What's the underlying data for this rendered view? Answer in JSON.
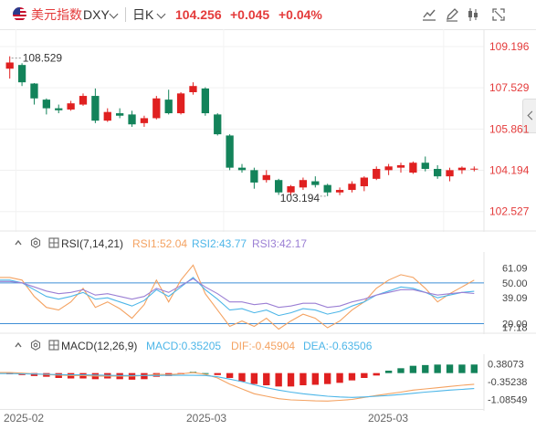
{
  "header": {
    "name": "美元指数",
    "code": "DXY",
    "period": "日K",
    "price": "104.256",
    "change": "+0.045",
    "change_pct": "+0.04%",
    "toolbar": [
      "chart-style-icon",
      "draw-pen-icon",
      "candlestick-toggle-icon",
      "fullscreen-icon"
    ]
  },
  "colors": {
    "up": "#e02020",
    "down": "#13835a",
    "rsi1": "#f4a261",
    "rsi2": "#4db6e8",
    "rsi3": "#9b7fd4",
    "dif": "#f4a261",
    "dea": "#4db6e8",
    "refline": "#3f8fd6",
    "price_axis": "#e43b3b"
  },
  "main_chart": {
    "price_ticks": [
      "109.196",
      "107.529",
      "105.861",
      "104.194",
      "102.527"
    ],
    "high_label": "108.529",
    "low_label": "103.194",
    "date_labels": [
      "2025-02",
      "2025-03",
      "2025-03"
    ]
  },
  "chart_data": {
    "type": "candlestick",
    "period": "daily",
    "ylim": [
      102.0,
      109.6
    ],
    "candles": [
      {
        "o": 108.3,
        "h": 108.8,
        "l": 107.9,
        "c": 108.55
      },
      {
        "o": 108.45,
        "h": 108.52,
        "l": 107.6,
        "c": 107.75
      },
      {
        "o": 107.7,
        "h": 107.72,
        "l": 106.85,
        "c": 107.1
      },
      {
        "o": 107.05,
        "h": 107.1,
        "l": 106.45,
        "c": 106.7
      },
      {
        "o": 106.7,
        "h": 106.85,
        "l": 106.5,
        "c": 106.62
      },
      {
        "o": 106.65,
        "h": 107.0,
        "l": 106.6,
        "c": 106.9
      },
      {
        "o": 106.85,
        "h": 107.3,
        "l": 106.8,
        "c": 107.2
      },
      {
        "o": 107.2,
        "h": 107.5,
        "l": 106.1,
        "c": 106.2
      },
      {
        "o": 106.2,
        "h": 106.7,
        "l": 106.15,
        "c": 106.55
      },
      {
        "o": 106.5,
        "h": 106.7,
        "l": 106.3,
        "c": 106.4
      },
      {
        "o": 106.45,
        "h": 106.6,
        "l": 105.95,
        "c": 106.05
      },
      {
        "o": 106.1,
        "h": 106.4,
        "l": 105.95,
        "c": 106.3
      },
      {
        "o": 106.3,
        "h": 107.2,
        "l": 106.25,
        "c": 107.1
      },
      {
        "o": 107.05,
        "h": 107.45,
        "l": 106.45,
        "c": 106.5
      },
      {
        "o": 106.5,
        "h": 107.35,
        "l": 106.45,
        "c": 107.3
      },
      {
        "o": 107.35,
        "h": 107.75,
        "l": 107.25,
        "c": 107.6
      },
      {
        "o": 107.5,
        "h": 107.55,
        "l": 106.4,
        "c": 106.5
      },
      {
        "o": 106.45,
        "h": 106.5,
        "l": 105.6,
        "c": 105.65
      },
      {
        "o": 105.6,
        "h": 105.65,
        "l": 104.2,
        "c": 104.3
      },
      {
        "o": 104.3,
        "h": 104.45,
        "l": 104.1,
        "c": 104.2
      },
      {
        "o": 104.2,
        "h": 104.3,
        "l": 103.45,
        "c": 103.7
      },
      {
        "o": 103.8,
        "h": 104.2,
        "l": 103.7,
        "c": 104.0
      },
      {
        "o": 103.8,
        "h": 103.85,
        "l": 103.2,
        "c": 103.3
      },
      {
        "o": 103.3,
        "h": 103.6,
        "l": 103.2,
        "c": 103.55
      },
      {
        "o": 103.5,
        "h": 103.9,
        "l": 103.4,
        "c": 103.8
      },
      {
        "o": 103.75,
        "h": 103.95,
        "l": 103.5,
        "c": 103.6
      },
      {
        "o": 103.6,
        "h": 103.65,
        "l": 103.15,
        "c": 103.3
      },
      {
        "o": 103.3,
        "h": 103.5,
        "l": 103.19,
        "c": 103.4
      },
      {
        "o": 103.4,
        "h": 103.75,
        "l": 103.3,
        "c": 103.65
      },
      {
        "o": 103.55,
        "h": 103.95,
        "l": 103.35,
        "c": 103.9
      },
      {
        "o": 103.85,
        "h": 104.35,
        "l": 103.8,
        "c": 104.25
      },
      {
        "o": 104.2,
        "h": 104.45,
        "l": 104.0,
        "c": 104.35
      },
      {
        "o": 104.3,
        "h": 104.5,
        "l": 104.1,
        "c": 104.4
      },
      {
        "o": 104.1,
        "h": 104.55,
        "l": 104.05,
        "c": 104.5
      },
      {
        "o": 104.5,
        "h": 104.75,
        "l": 104.15,
        "c": 104.25
      },
      {
        "o": 104.25,
        "h": 104.4,
        "l": 103.85,
        "c": 103.95
      },
      {
        "o": 103.95,
        "h": 104.3,
        "l": 103.75,
        "c": 104.2
      },
      {
        "o": 104.2,
        "h": 104.35,
        "l": 104.05,
        "c": 104.3
      },
      {
        "o": 104.25,
        "h": 104.35,
        "l": 104.15,
        "c": 104.26
      }
    ],
    "rsi": {
      "label": "RSI(7,14,21)",
      "rsi1_label": "RSI1:52.04",
      "rsi2_label": "RSI2:43.77",
      "rsi3_label": "RSI3:42.17",
      "ylim": [
        15,
        70
      ],
      "ticks": [
        "61.09",
        "50.00",
        "39.09",
        "20.00",
        "17.18"
      ],
      "ref_levels": [
        50,
        20
      ],
      "rsi1": [
        54,
        52,
        40,
        32,
        30,
        36,
        46,
        32,
        36,
        31,
        24,
        34,
        52,
        36,
        52,
        63,
        42,
        30,
        18,
        22,
        18,
        24,
        16,
        22,
        27,
        24,
        17,
        22,
        30,
        36,
        46,
        52,
        56,
        54,
        46,
        36,
        42,
        47,
        52.04
      ],
      "rsi2": [
        52,
        50,
        45,
        40,
        38,
        40,
        43,
        38,
        39,
        36,
        33,
        37,
        45,
        40,
        47,
        54,
        45,
        38,
        30,
        31,
        28,
        30,
        26,
        28,
        31,
        30,
        27,
        29,
        33,
        36,
        41,
        44,
        47,
        46,
        43,
        39,
        41,
        43,
        43.77
      ],
      "rsi3": [
        51,
        50,
        47,
        44,
        42,
        43,
        45,
        41,
        42,
        40,
        38,
        40,
        46,
        43,
        48,
        53,
        47,
        42,
        36,
        36,
        34,
        35,
        32,
        33,
        35,
        35,
        32,
        33,
        36,
        38,
        41,
        43,
        45,
        45,
        43,
        41,
        42,
        43,
        42.17
      ]
    },
    "macd": {
      "label": "MACD(12,26,9)",
      "macd_label": "MACD:0.35205",
      "dif_label": "DIF:-0.45904",
      "dea_label": "DEA:-0.63506",
      "ylim": [
        -1.4,
        0.7
      ],
      "ticks": [
        "0.38073",
        "-0.35238",
        "-1.08549"
      ],
      "hist": [
        -0.05,
        -0.08,
        -0.12,
        -0.15,
        -0.2,
        -0.22,
        -0.22,
        -0.25,
        -0.22,
        -0.25,
        -0.27,
        -0.25,
        -0.15,
        -0.12,
        -0.05,
        0.05,
        0,
        -0.08,
        -0.2,
        -0.35,
        -0.45,
        -0.5,
        -0.55,
        -0.55,
        -0.5,
        -0.48,
        -0.45,
        -0.4,
        -0.3,
        -0.2,
        -0.1,
        0.1,
        0.2,
        0.3,
        0.33,
        0.35,
        0.35,
        0.35,
        0.35205
      ],
      "dif": [
        0.02,
        0.0,
        -0.03,
        -0.06,
        -0.08,
        -0.1,
        -0.1,
        -0.12,
        -0.12,
        -0.12,
        -0.12,
        -0.1,
        -0.05,
        -0.06,
        -0.03,
        0.02,
        -0.05,
        -0.2,
        -0.45,
        -0.65,
        -0.85,
        -0.95,
        -1.05,
        -1.1,
        -1.12,
        -1.14,
        -1.15,
        -1.12,
        -1.08,
        -1.0,
        -0.92,
        -0.85,
        -0.78,
        -0.7,
        -0.65,
        -0.6,
        -0.55,
        -0.5,
        -0.45904
      ],
      "dea": [
        -0.02,
        -0.03,
        -0.04,
        -0.05,
        -0.06,
        -0.07,
        -0.07,
        -0.08,
        -0.09,
        -0.1,
        -0.1,
        -0.1,
        -0.1,
        -0.09,
        -0.09,
        -0.09,
        -0.1,
        -0.15,
        -0.25,
        -0.35,
        -0.48,
        -0.6,
        -0.7,
        -0.78,
        -0.85,
        -0.9,
        -0.95,
        -0.98,
        -1.0,
        -0.98,
        -0.95,
        -0.92,
        -0.88,
        -0.83,
        -0.78,
        -0.74,
        -0.7,
        -0.67,
        -0.63506
      ]
    }
  }
}
